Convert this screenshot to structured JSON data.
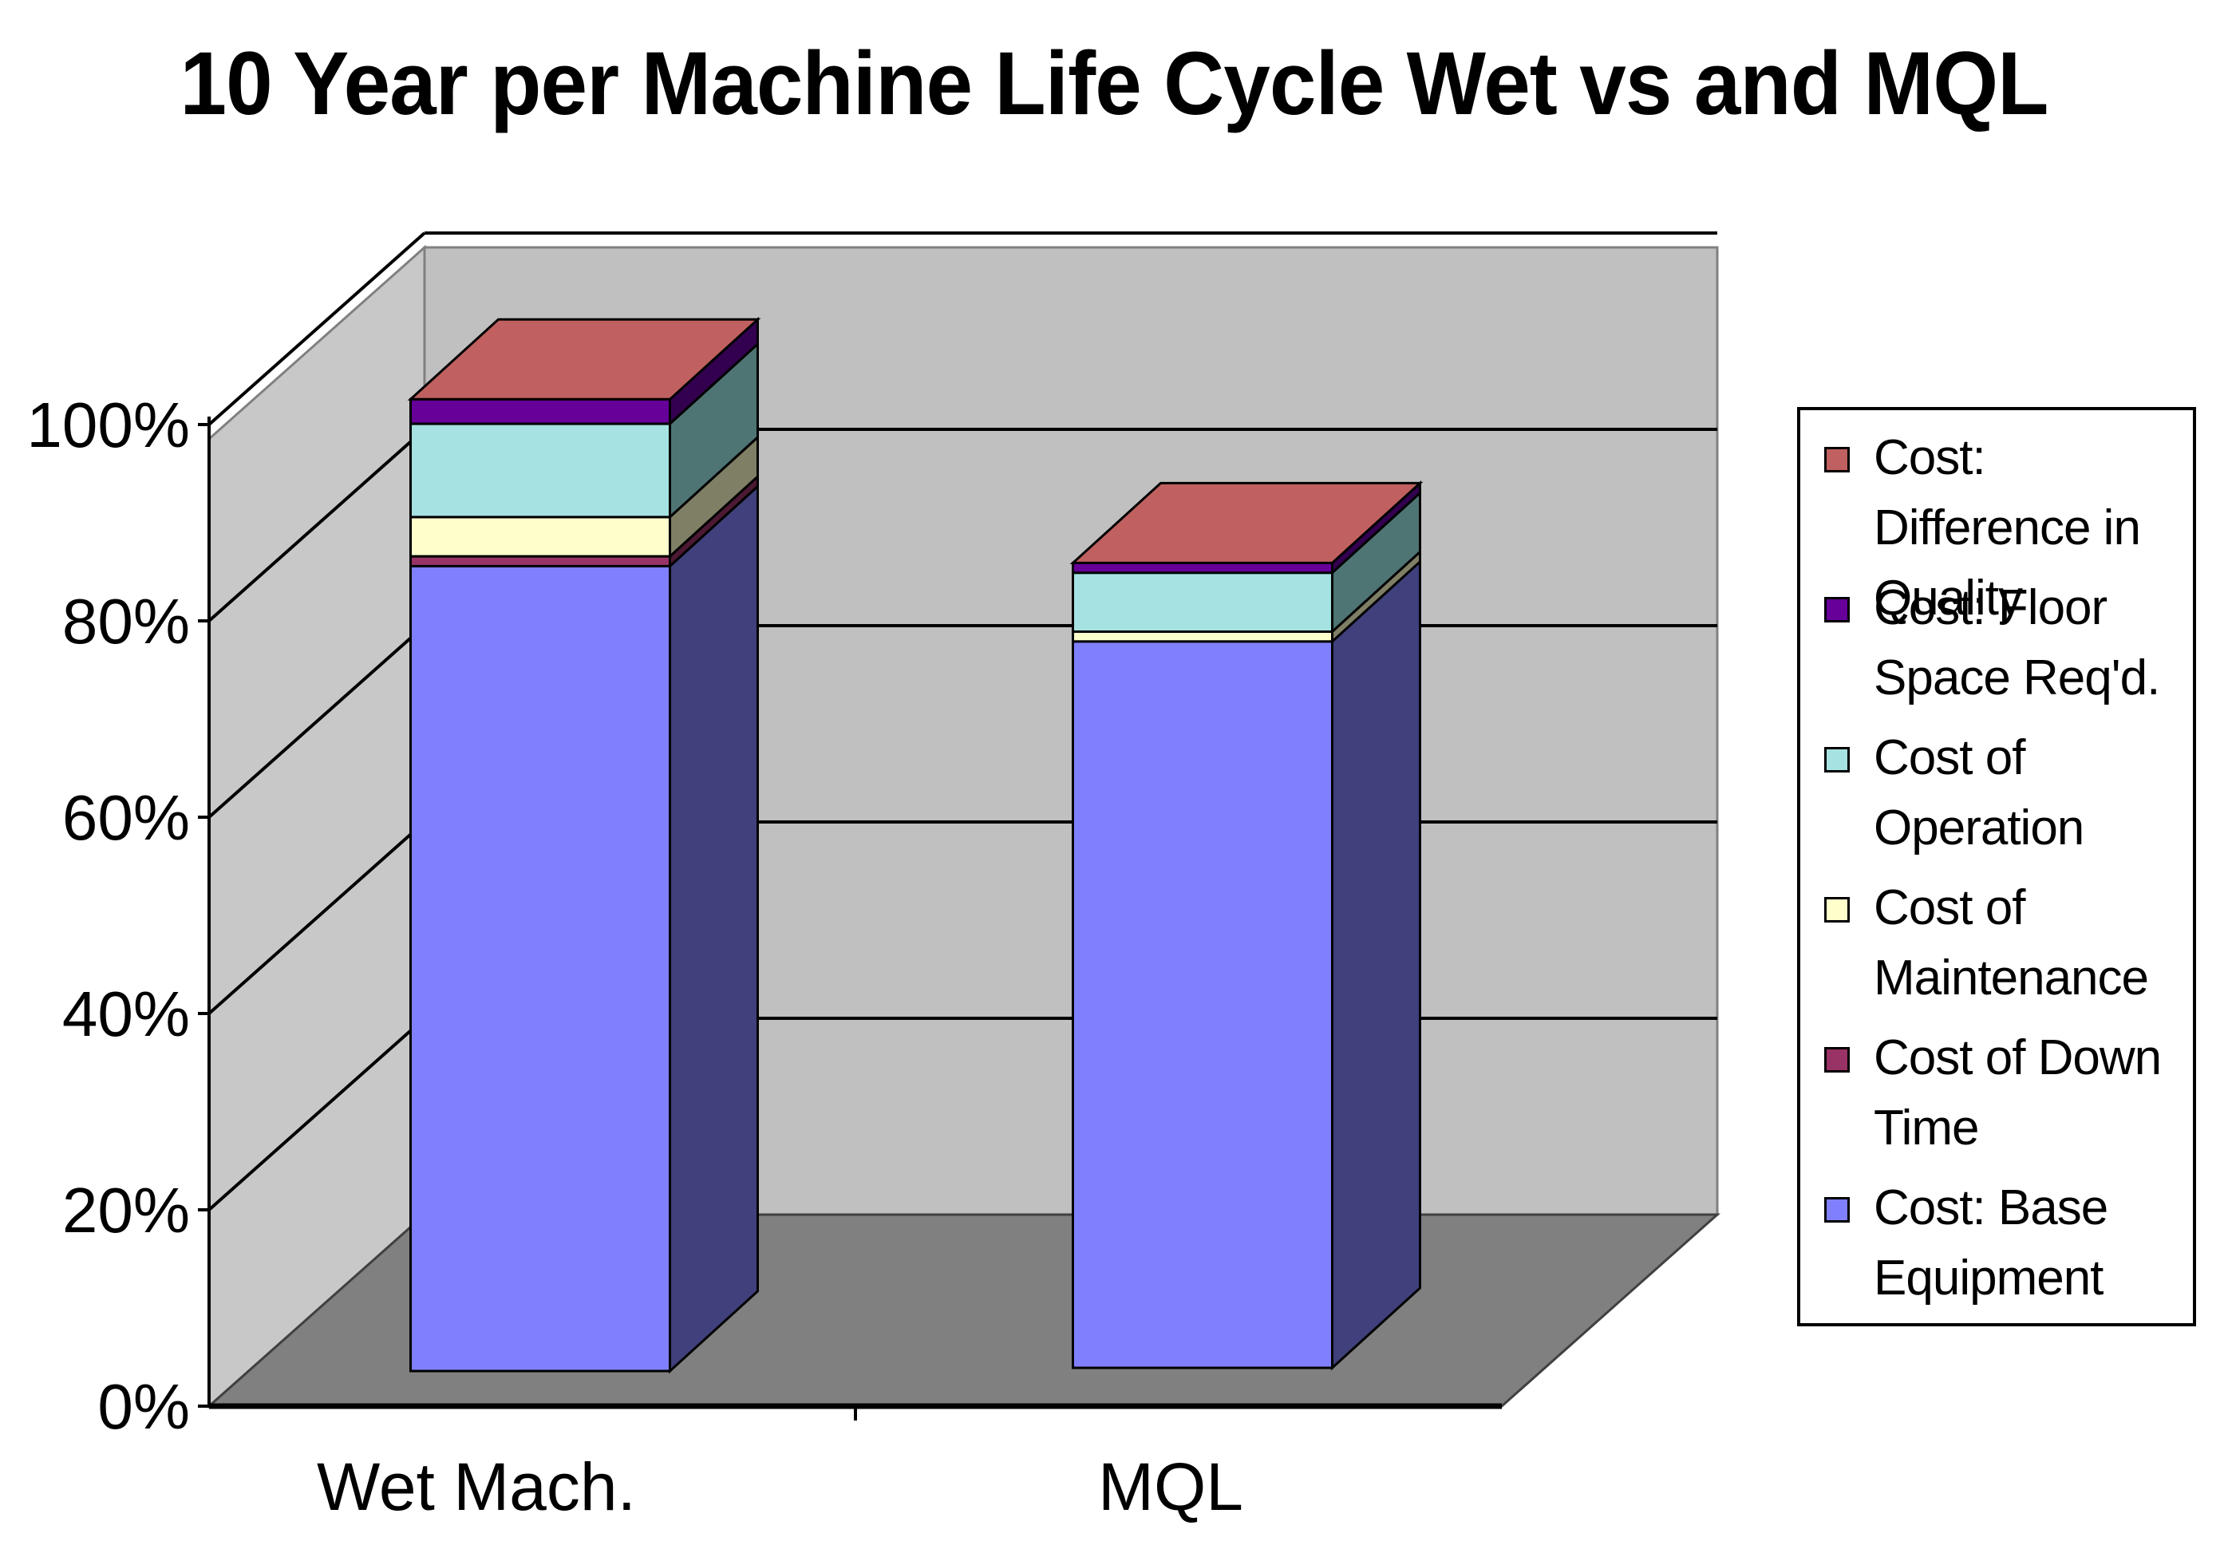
{
  "chart_data": {
    "type": "bar",
    "stacked": true,
    "three_d": true,
    "title": "10 Year per Machine Life Cycle Wet vs and MQL",
    "xlabel": "",
    "ylabel": "",
    "categories": [
      "Wet Mach.",
      "MQL"
    ],
    "y_tick_labels": [
      "0%",
      "20%",
      "40%",
      "60%",
      "80%",
      "100%"
    ],
    "ylim": [
      0,
      100
    ],
    "grid": true,
    "legend_position": "right",
    "series": [
      {
        "name": "Cost: Base Equipment",
        "color": "#8080FF",
        "side_color": "#40407C",
        "values": [
          82,
          74
        ]
      },
      {
        "name": "Cost of Down Time",
        "color": "#993366",
        "side_color": "#4C1933",
        "values": [
          1,
          0
        ]
      },
      {
        "name": "Cost of Maintenance",
        "color": "#FFFFCC",
        "side_color": "#7F7F66",
        "values": [
          4,
          1
        ]
      },
      {
        "name": "Cost of Operation",
        "color": "#A6E2E2",
        "side_color": "#4F7474",
        "values": [
          9.5,
          6
        ]
      },
      {
        "name": "Cost: Floor Space Req'd.",
        "color": "#660099",
        "side_color": "#330050",
        "values": [
          2.5,
          1
        ]
      },
      {
        "name": "Cost: Difference in Quality",
        "color": "#C06060",
        "side_color": "#8A3A3A",
        "values": [
          0,
          0
        ]
      }
    ]
  }
}
